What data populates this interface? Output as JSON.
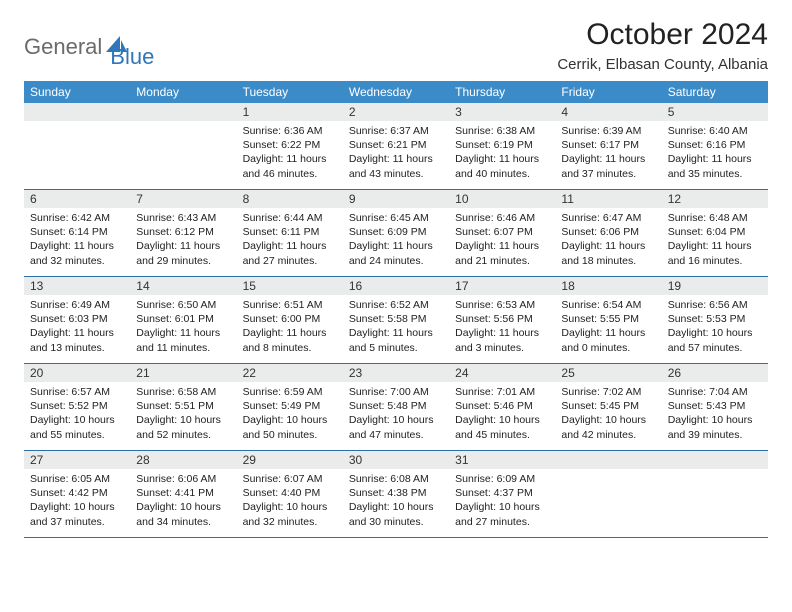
{
  "logo": {
    "text1": "General",
    "text2": "Blue"
  },
  "title": "October 2024",
  "location": "Cerrik, Elbasan County, Albania",
  "colors": {
    "header_bg": "#3c8bc9",
    "header_text": "#ffffff",
    "daynum_bg": "#e9eceb",
    "border": "#2f6ea8",
    "logo_gray": "#6b6b6b",
    "logo_blue": "#2f77b8"
  },
  "weekdays": [
    "Sunday",
    "Monday",
    "Tuesday",
    "Wednesday",
    "Thursday",
    "Friday",
    "Saturday"
  ],
  "weeks": [
    [
      {
        "empty": true
      },
      {
        "empty": true
      },
      {
        "num": "1",
        "sunrise": "Sunrise: 6:36 AM",
        "sunset": "Sunset: 6:22 PM",
        "daylight": "Daylight: 11 hours and 46 minutes."
      },
      {
        "num": "2",
        "sunrise": "Sunrise: 6:37 AM",
        "sunset": "Sunset: 6:21 PM",
        "daylight": "Daylight: 11 hours and 43 minutes."
      },
      {
        "num": "3",
        "sunrise": "Sunrise: 6:38 AM",
        "sunset": "Sunset: 6:19 PM",
        "daylight": "Daylight: 11 hours and 40 minutes."
      },
      {
        "num": "4",
        "sunrise": "Sunrise: 6:39 AM",
        "sunset": "Sunset: 6:17 PM",
        "daylight": "Daylight: 11 hours and 37 minutes."
      },
      {
        "num": "5",
        "sunrise": "Sunrise: 6:40 AM",
        "sunset": "Sunset: 6:16 PM",
        "daylight": "Daylight: 11 hours and 35 minutes."
      }
    ],
    [
      {
        "num": "6",
        "sunrise": "Sunrise: 6:42 AM",
        "sunset": "Sunset: 6:14 PM",
        "daylight": "Daylight: 11 hours and 32 minutes."
      },
      {
        "num": "7",
        "sunrise": "Sunrise: 6:43 AM",
        "sunset": "Sunset: 6:12 PM",
        "daylight": "Daylight: 11 hours and 29 minutes."
      },
      {
        "num": "8",
        "sunrise": "Sunrise: 6:44 AM",
        "sunset": "Sunset: 6:11 PM",
        "daylight": "Daylight: 11 hours and 27 minutes."
      },
      {
        "num": "9",
        "sunrise": "Sunrise: 6:45 AM",
        "sunset": "Sunset: 6:09 PM",
        "daylight": "Daylight: 11 hours and 24 minutes."
      },
      {
        "num": "10",
        "sunrise": "Sunrise: 6:46 AM",
        "sunset": "Sunset: 6:07 PM",
        "daylight": "Daylight: 11 hours and 21 minutes."
      },
      {
        "num": "11",
        "sunrise": "Sunrise: 6:47 AM",
        "sunset": "Sunset: 6:06 PM",
        "daylight": "Daylight: 11 hours and 18 minutes."
      },
      {
        "num": "12",
        "sunrise": "Sunrise: 6:48 AM",
        "sunset": "Sunset: 6:04 PM",
        "daylight": "Daylight: 11 hours and 16 minutes."
      }
    ],
    [
      {
        "num": "13",
        "sunrise": "Sunrise: 6:49 AM",
        "sunset": "Sunset: 6:03 PM",
        "daylight": "Daylight: 11 hours and 13 minutes."
      },
      {
        "num": "14",
        "sunrise": "Sunrise: 6:50 AM",
        "sunset": "Sunset: 6:01 PM",
        "daylight": "Daylight: 11 hours and 11 minutes."
      },
      {
        "num": "15",
        "sunrise": "Sunrise: 6:51 AM",
        "sunset": "Sunset: 6:00 PM",
        "daylight": "Daylight: 11 hours and 8 minutes."
      },
      {
        "num": "16",
        "sunrise": "Sunrise: 6:52 AM",
        "sunset": "Sunset: 5:58 PM",
        "daylight": "Daylight: 11 hours and 5 minutes."
      },
      {
        "num": "17",
        "sunrise": "Sunrise: 6:53 AM",
        "sunset": "Sunset: 5:56 PM",
        "daylight": "Daylight: 11 hours and 3 minutes."
      },
      {
        "num": "18",
        "sunrise": "Sunrise: 6:54 AM",
        "sunset": "Sunset: 5:55 PM",
        "daylight": "Daylight: 11 hours and 0 minutes."
      },
      {
        "num": "19",
        "sunrise": "Sunrise: 6:56 AM",
        "sunset": "Sunset: 5:53 PM",
        "daylight": "Daylight: 10 hours and 57 minutes."
      }
    ],
    [
      {
        "num": "20",
        "sunrise": "Sunrise: 6:57 AM",
        "sunset": "Sunset: 5:52 PM",
        "daylight": "Daylight: 10 hours and 55 minutes."
      },
      {
        "num": "21",
        "sunrise": "Sunrise: 6:58 AM",
        "sunset": "Sunset: 5:51 PM",
        "daylight": "Daylight: 10 hours and 52 minutes."
      },
      {
        "num": "22",
        "sunrise": "Sunrise: 6:59 AM",
        "sunset": "Sunset: 5:49 PM",
        "daylight": "Daylight: 10 hours and 50 minutes."
      },
      {
        "num": "23",
        "sunrise": "Sunrise: 7:00 AM",
        "sunset": "Sunset: 5:48 PM",
        "daylight": "Daylight: 10 hours and 47 minutes."
      },
      {
        "num": "24",
        "sunrise": "Sunrise: 7:01 AM",
        "sunset": "Sunset: 5:46 PM",
        "daylight": "Daylight: 10 hours and 45 minutes."
      },
      {
        "num": "25",
        "sunrise": "Sunrise: 7:02 AM",
        "sunset": "Sunset: 5:45 PM",
        "daylight": "Daylight: 10 hours and 42 minutes."
      },
      {
        "num": "26",
        "sunrise": "Sunrise: 7:04 AM",
        "sunset": "Sunset: 5:43 PM",
        "daylight": "Daylight: 10 hours and 39 minutes."
      }
    ],
    [
      {
        "num": "27",
        "sunrise": "Sunrise: 6:05 AM",
        "sunset": "Sunset: 4:42 PM",
        "daylight": "Daylight: 10 hours and 37 minutes."
      },
      {
        "num": "28",
        "sunrise": "Sunrise: 6:06 AM",
        "sunset": "Sunset: 4:41 PM",
        "daylight": "Daylight: 10 hours and 34 minutes."
      },
      {
        "num": "29",
        "sunrise": "Sunrise: 6:07 AM",
        "sunset": "Sunset: 4:40 PM",
        "daylight": "Daylight: 10 hours and 32 minutes."
      },
      {
        "num": "30",
        "sunrise": "Sunrise: 6:08 AM",
        "sunset": "Sunset: 4:38 PM",
        "daylight": "Daylight: 10 hours and 30 minutes."
      },
      {
        "num": "31",
        "sunrise": "Sunrise: 6:09 AM",
        "sunset": "Sunset: 4:37 PM",
        "daylight": "Daylight: 10 hours and 27 minutes."
      },
      {
        "empty": true
      },
      {
        "empty": true
      }
    ]
  ]
}
